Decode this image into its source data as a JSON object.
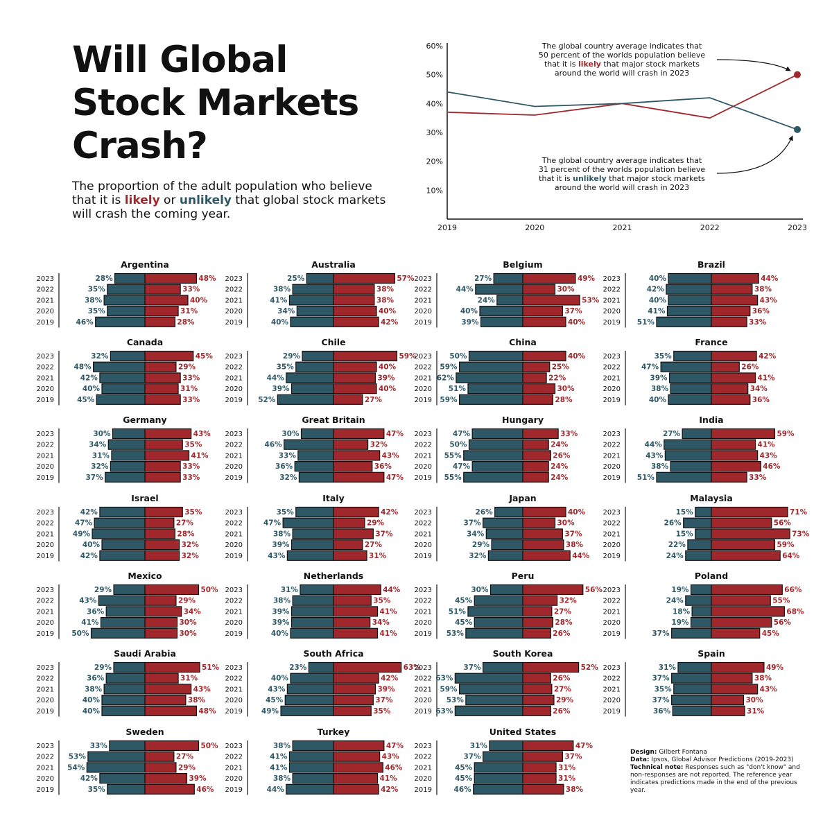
{
  "title": "Will Global Stock Markets Crash?",
  "subtitle": {
    "part1": "The proportion of the adult population who believe that it is ",
    "likely": "likely",
    "part2": " or ",
    "unlikely": "unlikely",
    "part3": " that global stock markets will crash the coming year."
  },
  "colors": {
    "likely": "#a0282c",
    "unlikely": "#2f5866",
    "axis": "#111111"
  },
  "annotations": {
    "likely": {
      "pre": "The global country average indicates that|50 percent of the worlds population believe|that it is ",
      "keyword": "likely",
      "post": " that major stock markets|around the world will crash in 2023"
    },
    "unlikely": {
      "pre": "The global country average indicates that|31 percent of the worlds population believe|that it is ",
      "keyword": "unlikely",
      "post": " that major stock markets|around the world will crash in 2023"
    }
  },
  "credits": {
    "design_label": "Design:",
    "design": "Gilbert Fontana",
    "data_label": "Data:",
    "data": "Ipsos, Global Advisor Predictions (2019-2023)",
    "note_label": "Technical note:",
    "note": "Responses such as \"don't know\" and non-responses are not reported. The reference year indicates predictions made in the end of the previous year."
  },
  "chart_data": [
    {
      "type": "line",
      "x": [
        2019,
        2020,
        2021,
        2022,
        2023
      ],
      "y_ticks": [
        "10%",
        "20%",
        "30%",
        "40%",
        "50%",
        "60%"
      ],
      "ylim": [
        0,
        60
      ],
      "series": [
        {
          "key": "likely",
          "values": [
            37,
            36,
            40,
            35,
            50
          ]
        },
        {
          "key": "unlikely",
          "values": [
            44,
            39,
            40,
            42,
            31
          ]
        }
      ]
    },
    {
      "type": "bar",
      "years": [
        "2023",
        "2022",
        "2021",
        "2020",
        "2019"
      ],
      "countries": [
        {
          "name": "Argentina",
          "unlikely": [
            28,
            35,
            38,
            35,
            46
          ],
          "likely": [
            48,
            33,
            40,
            31,
            28
          ]
        },
        {
          "name": "Australia",
          "unlikely": [
            25,
            38,
            41,
            34,
            40
          ],
          "likely": [
            57,
            38,
            38,
            40,
            42
          ]
        },
        {
          "name": "Belgium",
          "unlikely": [
            27,
            44,
            24,
            40,
            39
          ],
          "likely": [
            49,
            30,
            53,
            37,
            40
          ]
        },
        {
          "name": "Brazil",
          "unlikely": [
            40,
            42,
            40,
            41,
            51
          ],
          "likely": [
            44,
            38,
            43,
            36,
            33
          ]
        },
        {
          "name": "Canada",
          "unlikely": [
            32,
            48,
            42,
            40,
            45
          ],
          "likely": [
            45,
            29,
            33,
            31,
            33
          ]
        },
        {
          "name": "Chile",
          "unlikely": [
            29,
            35,
            44,
            39,
            52
          ],
          "likely": [
            59,
            40,
            39,
            40,
            27
          ]
        },
        {
          "name": "China",
          "unlikely": [
            50,
            59,
            62,
            51,
            59
          ],
          "likely": [
            40,
            25,
            22,
            30,
            28
          ]
        },
        {
          "name": "France",
          "unlikely": [
            35,
            47,
            39,
            38,
            40
          ],
          "likely": [
            42,
            26,
            41,
            34,
            36
          ]
        },
        {
          "name": "Germany",
          "unlikely": [
            30,
            34,
            31,
            32,
            37
          ],
          "likely": [
            43,
            35,
            41,
            33,
            33
          ]
        },
        {
          "name": "Great Britain",
          "unlikely": [
            30,
            46,
            33,
            36,
            32
          ],
          "likely": [
            47,
            32,
            43,
            36,
            47
          ]
        },
        {
          "name": "Hungary",
          "unlikely": [
            47,
            50,
            55,
            47,
            55
          ],
          "likely": [
            33,
            24,
            26,
            24,
            24
          ]
        },
        {
          "name": "India",
          "unlikely": [
            27,
            44,
            43,
            38,
            51
          ],
          "likely": [
            59,
            41,
            43,
            46,
            33
          ]
        },
        {
          "name": "Israel",
          "unlikely": [
            42,
            47,
            49,
            40,
            42
          ],
          "likely": [
            35,
            27,
            28,
            32,
            32
          ]
        },
        {
          "name": "Italy",
          "unlikely": [
            35,
            47,
            38,
            39,
            43
          ],
          "likely": [
            42,
            29,
            37,
            27,
            31
          ]
        },
        {
          "name": "Japan",
          "unlikely": [
            26,
            37,
            34,
            29,
            32
          ],
          "likely": [
            40,
            30,
            37,
            38,
            44
          ]
        },
        {
          "name": "Malaysia",
          "unlikely": [
            15,
            26,
            15,
            22,
            24
          ],
          "likely": [
            71,
            56,
            73,
            59,
            64
          ]
        },
        {
          "name": "Mexico",
          "unlikely": [
            29,
            43,
            36,
            41,
            50
          ],
          "likely": [
            50,
            29,
            34,
            30,
            30
          ]
        },
        {
          "name": "Netherlands",
          "unlikely": [
            31,
            38,
            39,
            39,
            40
          ],
          "likely": [
            44,
            35,
            41,
            34,
            41
          ]
        },
        {
          "name": "Peru",
          "unlikely": [
            30,
            45,
            51,
            45,
            53
          ],
          "likely": [
            56,
            32,
            27,
            28,
            26
          ]
        },
        {
          "name": "Poland",
          "unlikely": [
            19,
            24,
            18,
            19,
            37
          ],
          "likely": [
            66,
            55,
            68,
            56,
            45
          ]
        },
        {
          "name": "Saudi Arabia",
          "unlikely": [
            29,
            36,
            38,
            40,
            40
          ],
          "likely": [
            51,
            31,
            43,
            38,
            48
          ]
        },
        {
          "name": "South Africa",
          "unlikely": [
            23,
            40,
            43,
            45,
            49
          ],
          "likely": [
            63,
            42,
            39,
            37,
            35
          ]
        },
        {
          "name": "South Korea",
          "unlikely": [
            37,
            63,
            59,
            53,
            63
          ],
          "likely": [
            52,
            26,
            27,
            29,
            26
          ]
        },
        {
          "name": "Spain",
          "unlikely": [
            31,
            37,
            35,
            37,
            36
          ],
          "likely": [
            49,
            38,
            43,
            30,
            31
          ]
        },
        {
          "name": "Sweden",
          "unlikely": [
            33,
            53,
            54,
            42,
            35
          ],
          "likely": [
            50,
            27,
            29,
            39,
            46
          ]
        },
        {
          "name": "Turkey",
          "unlikely": [
            38,
            41,
            41,
            38,
            44
          ],
          "likely": [
            47,
            43,
            46,
            41,
            42
          ]
        },
        {
          "name": "United States",
          "unlikely": [
            31,
            37,
            45,
            45,
            46
          ],
          "likely": [
            47,
            37,
            31,
            31,
            38
          ]
        }
      ]
    }
  ]
}
